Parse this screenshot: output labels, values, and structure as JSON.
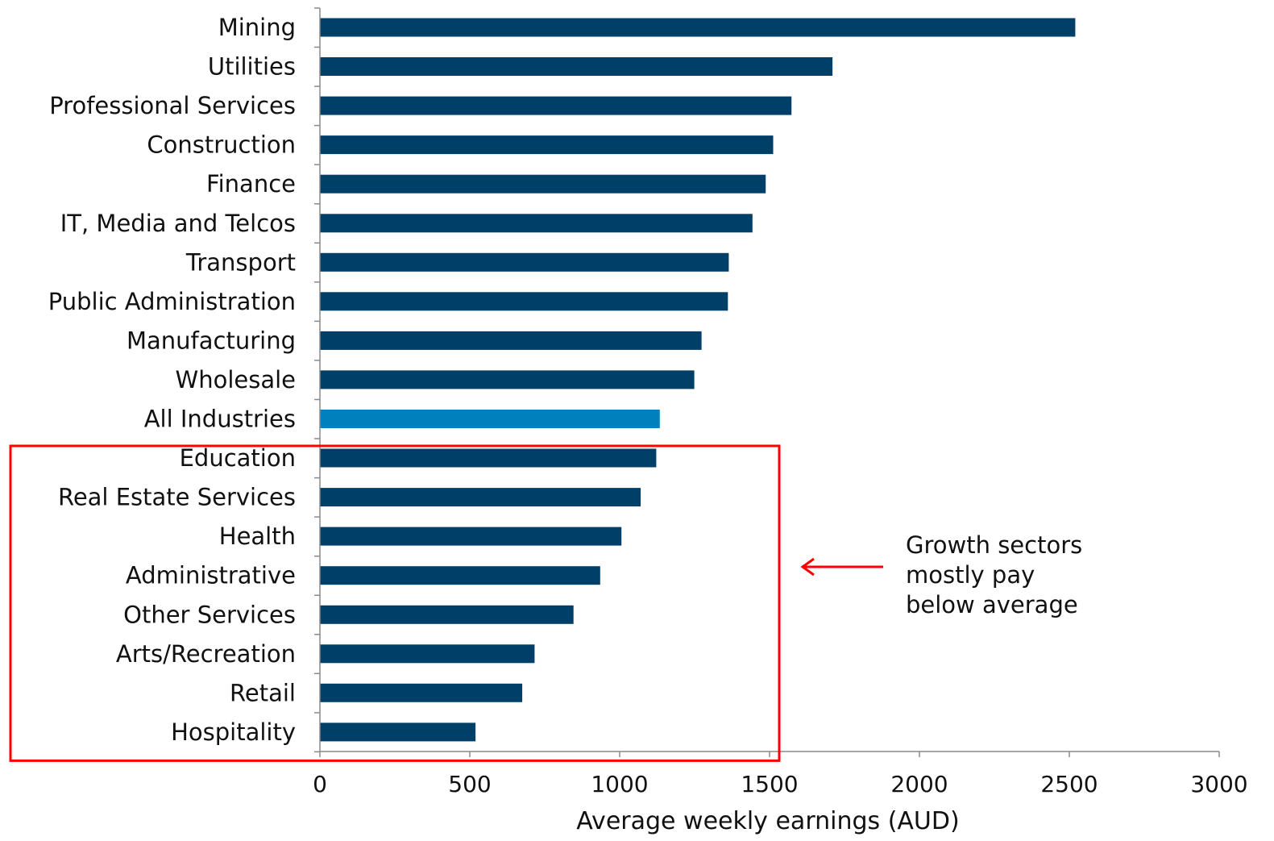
{
  "chart_data": {
    "type": "bar",
    "orientation": "horizontal",
    "xlabel": "Average weekly earnings (AUD)",
    "ylabel": "",
    "xlim": [
      0,
      3000
    ],
    "xticks": [
      0,
      500,
      1000,
      1500,
      2000,
      2500,
      3000
    ],
    "grid": false,
    "categories": [
      "Mining",
      "Utilities",
      "Professional Services",
      "Construction",
      "Finance",
      "IT, Media and Telcos",
      "Transport",
      "Public Administration",
      "Manufacturing",
      "Wholesale",
      "All Industries",
      "Education",
      "Real Estate Services",
      "Health",
      "Administrative",
      "Other Services",
      "Arts/Recreation",
      "Retail",
      "Hospitality"
    ],
    "values": [
      2520,
      1710,
      1573,
      1512,
      1487,
      1443,
      1364,
      1361,
      1273,
      1249,
      1134,
      1122,
      1070,
      1006,
      935,
      846,
      716,
      675,
      519
    ],
    "highlight_category": "All Industries",
    "colors": {
      "bar": "#003f67",
      "highlight_bar": "#0080bd",
      "annotation": "#ff0000",
      "axis": "#8a8a8a"
    },
    "annotation": {
      "lines": [
        "Growth sectors",
        "mostly pay",
        "below average"
      ],
      "box_from_category": "Education",
      "box_to_category": "Hospitality"
    }
  }
}
